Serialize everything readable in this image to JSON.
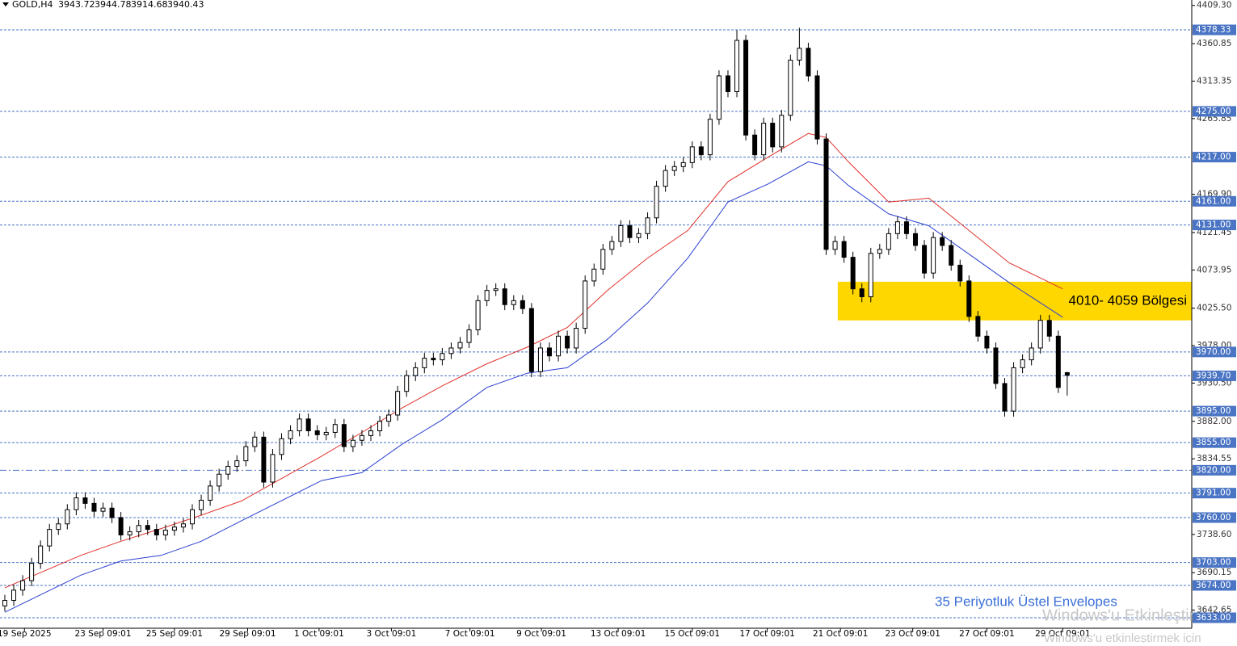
{
  "chart_data": {
    "type": "candlestick",
    "symbol": "GOLD,H4",
    "xlim": [
      -0.54,
      132.95
    ],
    "ylim": [
      3619.7,
      4416.2
    ],
    "xticks": [
      {
        "value": 2.2,
        "label": "19 Sep 2025"
      },
      {
        "value": 11,
        "label": "23 Sep 09:01"
      },
      {
        "value": 19,
        "label": "25 Sep 09:01"
      },
      {
        "value": 27.2,
        "label": "29 Sep 09:01"
      },
      {
        "value": 35.2,
        "label": "1 Oct 09:01"
      },
      {
        "value": 43.3,
        "label": "3 Oct 09:01"
      },
      {
        "value": 52.1,
        "label": "7 Oct 09:01"
      },
      {
        "value": 60.1,
        "label": "9 Oct 09:01"
      },
      {
        "value": 68.7,
        "label": "13 Oct 09:01"
      },
      {
        "value": 77,
        "label": "15 Oct 09:01"
      },
      {
        "value": 85.4,
        "label": "17 Oct 09:01"
      },
      {
        "value": 93.6,
        "label": "21 Oct 09:01"
      },
      {
        "value": 101.7,
        "label": "23 Oct 09:01"
      },
      {
        "value": 110,
        "label": "27 Oct 09:01"
      },
      {
        "value": 118.5,
        "label": "29 Oct 09:01"
      }
    ],
    "yticks": [
      {
        "value": 4409.3,
        "label": "4409.30"
      },
      {
        "value": 4360.85,
        "label": "4360.85"
      },
      {
        "value": 4313.35,
        "label": "4313.35"
      },
      {
        "value": 4265.85,
        "label": "4265.85"
      },
      {
        "value": 4169.9,
        "label": "4169.90"
      },
      {
        "value": 4121.45,
        "label": "4121.45"
      },
      {
        "value": 4073.95,
        "label": "4073.95"
      },
      {
        "value": 4025.5,
        "label": "4025.50"
      },
      {
        "value": 3978,
        "label": "3978.00"
      },
      {
        "value": 3930.5,
        "label": "3930.50"
      },
      {
        "value": 3882,
        "label": "3882.00"
      },
      {
        "value": 3834.55,
        "label": "3834.55"
      },
      {
        "value": 3738.6,
        "label": "3738.60"
      },
      {
        "value": 3690.15,
        "label": "3690.15"
      },
      {
        "value": 3642.65,
        "label": "3642.65"
      }
    ],
    "levels": [
      {
        "value": 4378.33,
        "label": "4378.33"
      },
      {
        "value": 4275,
        "label": "4275.00"
      },
      {
        "value": 4217,
        "label": "4217.00"
      },
      {
        "value": 4161,
        "label": "4161.00"
      },
      {
        "value": 4131,
        "label": "4131.00"
      },
      {
        "value": 3970,
        "label": "3970.00"
      },
      {
        "value": 3939.7,
        "label": "3939.70"
      },
      {
        "value": 3895,
        "label": "3895.00"
      },
      {
        "value": 3855,
        "label": "3855.00"
      },
      {
        "value": 3820,
        "label": "3820.00",
        "style": "dash-dot"
      },
      {
        "value": 3791,
        "label": "3791.00"
      },
      {
        "value": 3760,
        "label": "3760.00"
      },
      {
        "value": 3703,
        "label": "3703.00"
      },
      {
        "value": 3674,
        "label": "3674.00"
      },
      {
        "value": 3633,
        "label": "3633.00"
      }
    ],
    "level_color": "#4a74c4",
    "open": [
      3648,
      3655,
      3668,
      3680,
      3702,
      3724,
      3745,
      3752,
      3770,
      3785,
      3778,
      3768,
      3772,
      3760,
      3738,
      3742,
      3750,
      3745,
      3738,
      3744,
      3748,
      3752,
      3770,
      3782,
      3800,
      3815,
      3825,
      3832,
      3850,
      3862,
      3805,
      3840,
      3860,
      3870,
      3885,
      3870,
      3865,
      3868,
      3878,
      3850,
      3858,
      3864,
      3870,
      3882,
      3890,
      3920,
      3940,
      3950,
      3962,
      3960,
      3968,
      3975,
      3982,
      3998,
      4035,
      4048,
      4050,
      4030,
      4035,
      4025,
      3945,
      3975,
      3965,
      3990,
      3975,
      4000,
      4060,
      4075,
      4100,
      4110,
      4130,
      4115,
      4120,
      4140,
      4180,
      4200,
      4205,
      4210,
      4230,
      4220,
      4265,
      4320,
      4300,
      4365,
      4245,
      4220,
      4260,
      4230,
      4270,
      4340,
      4355,
      4320,
      4240,
      4100,
      4110,
      4090,
      4050,
      4040,
      4095,
      4100,
      4120,
      4135,
      4120,
      4105,
      4070,
      4115,
      4105,
      4080,
      4060,
      4015,
      3990,
      3975,
      3930,
      3895,
      3950,
      3960,
      3975,
      4010,
      3990,
      3943.72
    ],
    "high": [
      3662,
      3675,
      3687,
      3709,
      3731,
      3752,
      3759,
      3777,
      3792,
      3792,
      3785,
      3779,
      3779,
      3767,
      3749,
      3757,
      3757,
      3752,
      3751,
      3755,
      3759,
      3777,
      3789,
      3807,
      3822,
      3832,
      3839,
      3857,
      3869,
      3869,
      3847,
      3867,
      3877,
      3892,
      3892,
      3877,
      3875,
      3885,
      3885,
      3865,
      3871,
      3877,
      3889,
      3897,
      3927,
      3947,
      3957,
      3969,
      3969,
      3975,
      3982,
      3989,
      4005,
      4042,
      4055,
      4057,
      4057,
      4042,
      4042,
      4032,
      3982,
      3982,
      3997,
      3997,
      4007,
      4067,
      4082,
      4107,
      4117,
      4137,
      4137,
      4127,
      4147,
      4187,
      4207,
      4212,
      4217,
      4237,
      4237,
      4272,
      4327,
      4327,
      4378,
      4372,
      4252,
      4267,
      4267,
      4277,
      4347,
      4381,
      4362,
      4327,
      4247,
      4117,
      4117,
      4097,
      4057,
      4102,
      4107,
      4127,
      4142,
      4142,
      4127,
      4112,
      4122,
      4122,
      4112,
      4087,
      4067,
      4022,
      3997,
      3982,
      3937,
      3957,
      3967,
      3982,
      4017,
      4017,
      3997,
      3944.78
    ],
    "low": [
      3641,
      3648,
      3661,
      3673,
      3695,
      3717,
      3738,
      3745,
      3763,
      3771,
      3761,
      3761,
      3753,
      3731,
      3731,
      3735,
      3738,
      3731,
      3731,
      3737,
      3741,
      3745,
      3763,
      3775,
      3793,
      3808,
      3818,
      3825,
      3843,
      3798,
      3798,
      3833,
      3853,
      3863,
      3863,
      3858,
      3858,
      3861,
      3843,
      3843,
      3851,
      3857,
      3863,
      3875,
      3883,
      3913,
      3933,
      3943,
      3953,
      3953,
      3961,
      3968,
      3975,
      3991,
      4028,
      4041,
      4023,
      4023,
      4018,
      3938,
      3938,
      3958,
      3958,
      3968,
      3968,
      3993,
      4053,
      4068,
      4093,
      4103,
      4108,
      4108,
      4113,
      4133,
      4173,
      4193,
      4198,
      4203,
      4213,
      4213,
      4258,
      4293,
      4293,
      4238,
      4213,
      4213,
      4223,
      4223,
      4263,
      4333,
      4313,
      4233,
      4093,
      4093,
      4083,
      4043,
      4033,
      4033,
      4088,
      4093,
      4113,
      4113,
      4098,
      4063,
      4063,
      4098,
      4073,
      4053,
      4008,
      3983,
      3968,
      3923,
      3888,
      3888,
      3943,
      3953,
      3968,
      3983,
      3918,
      3914.68
    ],
    "close": [
      3655,
      3668,
      3680,
      3702,
      3724,
      3745,
      3752,
      3770,
      3785,
      3778,
      3768,
      3772,
      3760,
      3738,
      3742,
      3750,
      3745,
      3738,
      3744,
      3748,
      3752,
      3770,
      3782,
      3800,
      3815,
      3825,
      3832,
      3850,
      3862,
      3805,
      3840,
      3860,
      3870,
      3885,
      3870,
      3865,
      3868,
      3878,
      3850,
      3858,
      3864,
      3870,
      3882,
      3890,
      3920,
      3940,
      3950,
      3962,
      3960,
      3968,
      3975,
      3982,
      3998,
      4035,
      4048,
      4050,
      4030,
      4035,
      4025,
      3945,
      3975,
      3965,
      3990,
      3975,
      4000,
      4060,
      4075,
      4100,
      4110,
      4130,
      4115,
      4120,
      4140,
      4180,
      4200,
      4205,
      4210,
      4230,
      4220,
      4265,
      4320,
      4300,
      4365,
      4245,
      4220,
      4260,
      4230,
      4270,
      4340,
      4355,
      4320,
      4240,
      4100,
      4110,
      4090,
      4050,
      4040,
      4095,
      4100,
      4120,
      4135,
      4120,
      4105,
      4070,
      4115,
      4105,
      4080,
      4060,
      4015,
      3990,
      3975,
      3930,
      3895,
      3950,
      3960,
      3975,
      4010,
      3990,
      3925,
      3940.43
    ],
    "envelopes": [
      {
        "color": "#e0302a",
        "x": [
          0,
          8.5,
          13,
          17.5,
          22,
          26.5,
          35.5,
          40,
          44.5,
          49,
          54,
          58.5,
          63,
          67.5,
          72,
          76.5,
          81,
          85.5,
          90,
          92,
          94.5,
          99,
          103.5,
          108,
          112.5,
          118.5
        ],
        "values": [
          3671,
          3712,
          3730,
          3746,
          3763,
          3781,
          3838,
          3868,
          3899,
          3927,
          3955,
          3976,
          4001,
          4048,
          4089,
          4124,
          4186,
          4217,
          4247,
          4242,
          4211,
          4160,
          4165,
          4124,
          4083,
          4050
        ]
      },
      {
        "color": "#2a3fd0",
        "x": [
          0,
          8.5,
          13,
          17.5,
          22,
          26.5,
          35.5,
          40,
          44.5,
          49,
          54,
          58.5,
          63,
          67.5,
          72,
          76.5,
          81,
          85.5,
          90,
          92,
          94.5,
          99,
          103.5,
          108,
          112.5,
          118.5
        ],
        "values": [
          3640,
          3687,
          3705,
          3712,
          3730,
          3756,
          3807,
          3817,
          3853,
          3884,
          3925,
          3943,
          3950,
          3986,
          4032,
          4089,
          4160,
          4183,
          4211,
          4206,
          4181,
          4145,
          4130,
          4094,
          4058,
          4014
        ]
      }
    ],
    "envelope_label": "35 Periyotluk Üstel Envelopes",
    "zone": {
      "from": 4010,
      "to": 4059,
      "start": 93.3,
      "label": "4010- 4059 Bölgesi",
      "color": "#ffd700"
    },
    "watermark": [
      "Windows'u Etkinleştir",
      "Windows'u etkinleştirmek için"
    ]
  }
}
